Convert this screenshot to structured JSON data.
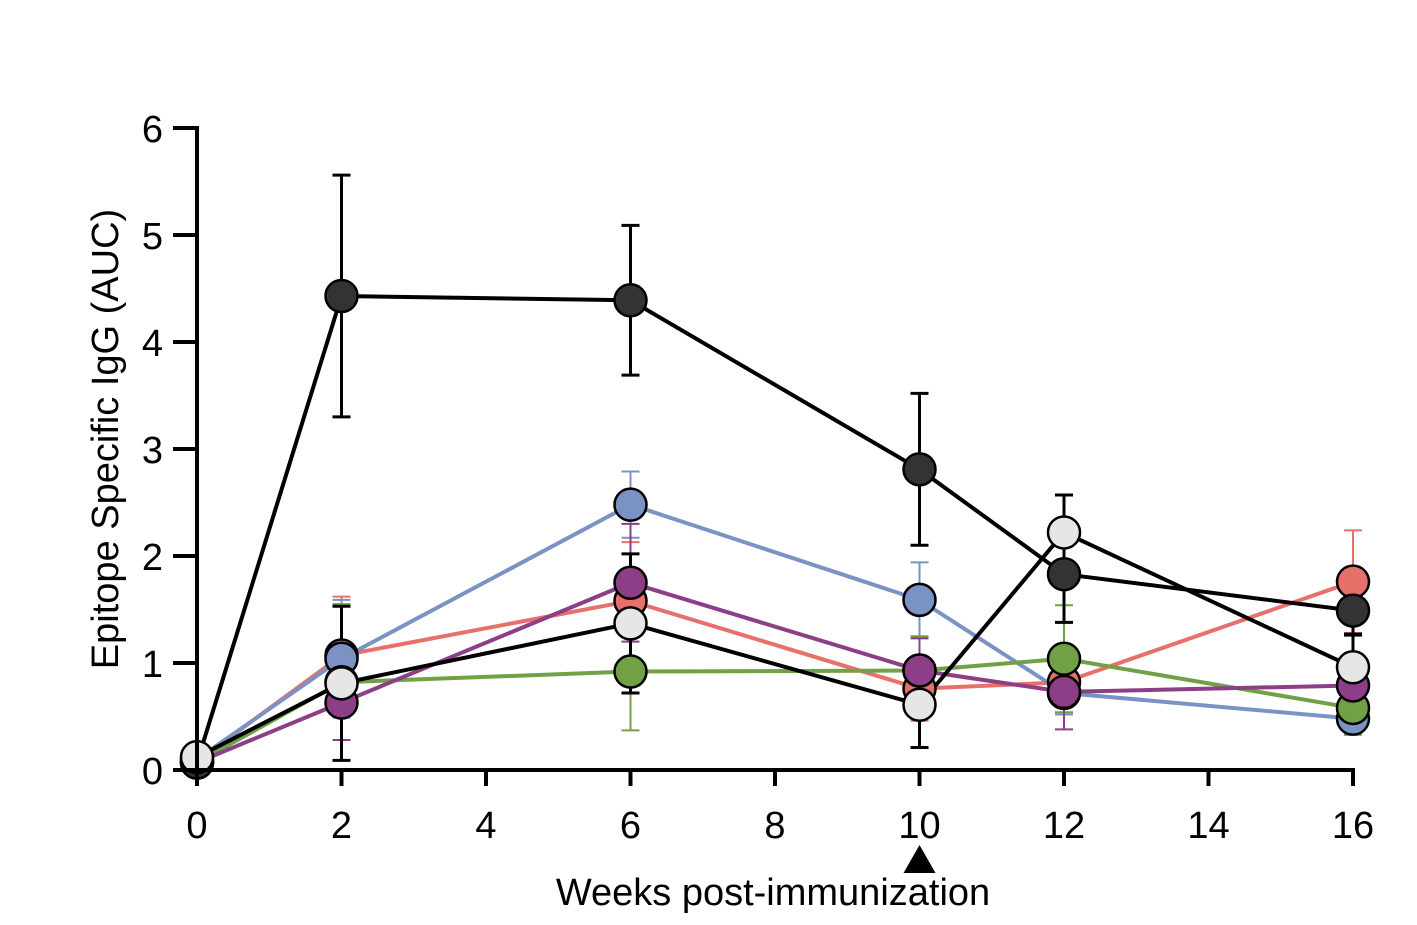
{
  "chart_data": {
    "type": "line",
    "xlabel": "Weeks post-immunization",
    "ylabel": "Epitope Specific IgG (AUC)",
    "xlim": [
      0,
      16
    ],
    "ylim": [
      0,
      6
    ],
    "x_ticks": [
      "0",
      "2",
      "4",
      "6",
      "8",
      "10",
      "12",
      "14",
      "16"
    ],
    "y_ticks": [
      "0",
      "1",
      "2",
      "3",
      "4",
      "5",
      "6"
    ],
    "marker_x": 10,
    "grid": false,
    "legend": "none",
    "series": [
      {
        "color": "#e8706a",
        "x": [
          0,
          2,
          6,
          10,
          12,
          16
        ],
        "y": [
          0.08,
          1.07,
          1.58,
          0.76,
          0.82,
          1.76
        ],
        "err": [
          0.03,
          0.55,
          0.55,
          0.3,
          0.3,
          0.48
        ]
      },
      {
        "color": "#7a93c4",
        "x": [
          0,
          2,
          6,
          10,
          12,
          16
        ],
        "y": [
          0.1,
          1.04,
          2.48,
          1.59,
          0.72,
          0.48
        ],
        "err": [
          0.03,
          0.55,
          0.31,
          0.35,
          0.2,
          0.15
        ]
      },
      {
        "color": "#72a046",
        "x": [
          0,
          2,
          6,
          10,
          12,
          16
        ],
        "y": [
          0.07,
          0.82,
          0.92,
          0.93,
          1.04,
          0.58
        ],
        "err": [
          0.03,
          0.73,
          0.55,
          0.32,
          0.5,
          0.25
        ]
      },
      {
        "color": "#8c3f87",
        "x": [
          0,
          2,
          6,
          10,
          12,
          16
        ],
        "y": [
          0.07,
          0.63,
          1.75,
          0.93,
          0.73,
          0.79
        ],
        "err": [
          0.03,
          0.35,
          0.55,
          0.3,
          0.35,
          0.3
        ]
      },
      {
        "color": "#333333",
        "line_color": "#000000",
        "x": [
          0,
          2,
          6,
          10,
          12,
          16
        ],
        "y": [
          0.07,
          4.43,
          4.39,
          2.81,
          1.83,
          1.49
        ],
        "err": [
          0.03,
          1.13,
          0.7,
          0.71,
          0.45,
          0.22
        ]
      },
      {
        "color": "#e6e6e6",
        "line_color": "#000000",
        "x": [
          0,
          2,
          6,
          10,
          12,
          16
        ],
        "y": [
          0.12,
          0.81,
          1.37,
          0.61,
          2.22,
          0.96
        ],
        "err": [
          0.03,
          0.72,
          0.65,
          0.4,
          0.35,
          0.3
        ]
      }
    ]
  }
}
